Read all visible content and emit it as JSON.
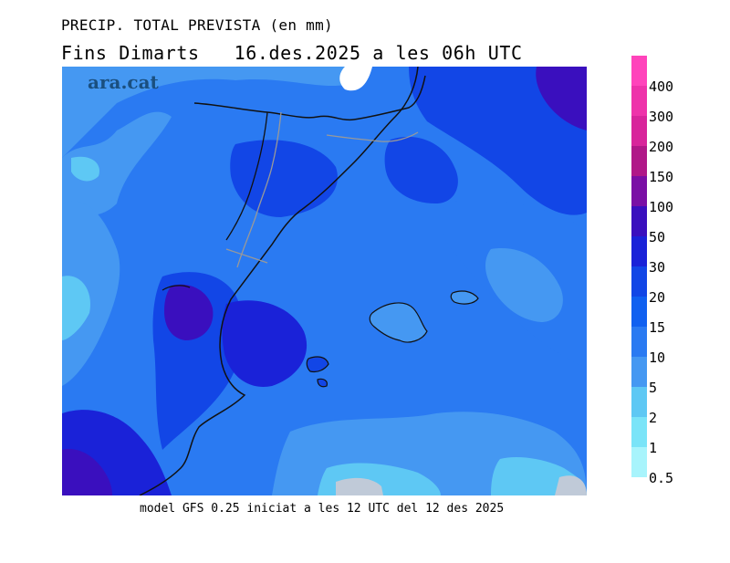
{
  "header": {
    "title_line1": "PRECIP. TOTAL PREVISTA (en mm)",
    "title_line2": "Fins Dimarts   16.des.2025 a les 06h UTC"
  },
  "brand": {
    "name": "ara.cat"
  },
  "footer": {
    "model_text": "model GFS 0.25 iniciat a les 12 UTC del 12 des 2025"
  },
  "legend": {
    "units": "mm",
    "levels": [
      {
        "label": "400",
        "color": "#ff44bb"
      },
      {
        "label": "300",
        "color": "#ee33aa"
      },
      {
        "label": "200",
        "color": "#d8259b"
      },
      {
        "label": "150",
        "color": "#b01888"
      },
      {
        "label": "100",
        "color": "#7a0fa5"
      },
      {
        "label": "50",
        "color": "#3a0fbe"
      },
      {
        "label": "30",
        "color": "#1a22d8"
      },
      {
        "label": "20",
        "color": "#1246e6"
      },
      {
        "label": "15",
        "color": "#1060f0"
      },
      {
        "label": "10",
        "color": "#2a7af2"
      },
      {
        "label": "5",
        "color": "#4598f2"
      },
      {
        "label": "2",
        "color": "#5ec8f4"
      },
      {
        "label": "1",
        "color": "#7ae4f8"
      },
      {
        "label": "0.5",
        "color": "#a8f4fc"
      }
    ]
  },
  "map": {
    "region": "Catalunya, Pais Valencia i Illes Balears",
    "colors": {
      "light_cyan": "#7ae4f8",
      "cyan": "#5ec8f4",
      "light_blue": "#4598f2",
      "mid_blue": "#2a7af2",
      "blue": "#1060f0",
      "strong_blue": "#1246e6",
      "deep_blue": "#1a22d8",
      "indigo": "#3a0fbe",
      "gray": "#c0cad8",
      "border": "#111111",
      "admin_border": "#999999"
    }
  }
}
